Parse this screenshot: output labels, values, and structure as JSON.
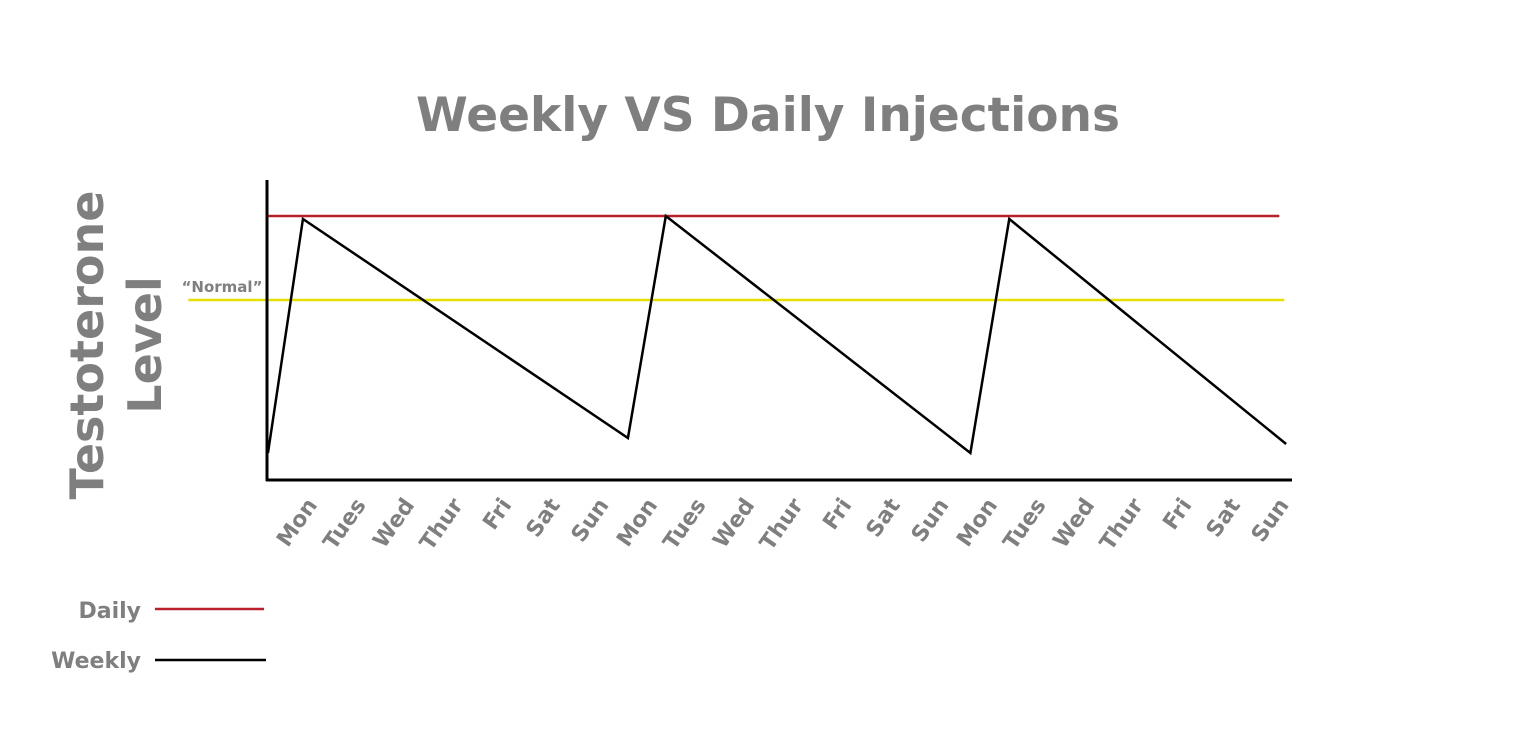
{
  "chart_data": {
    "type": "line",
    "title": "Weekly VS Daily Injections",
    "ylabel": [
      "Testoterone",
      "Level"
    ],
    "xlabel": "",
    "x_tick_labels": [
      "Mon",
      "Tues",
      "Wed",
      "Thur",
      "Fri",
      "Sat",
      "Sun",
      "Mon",
      "Tues",
      "Wed",
      "Thur",
      "Fri",
      "Sat",
      "Sun",
      "Mon",
      "Tues",
      "Wed",
      "Thur",
      "Fri",
      "Sat",
      "Sun"
    ],
    "xlim": [
      -0.68,
      20.4
    ],
    "ylim": [
      0,
      100
    ],
    "grid": false,
    "legend_placement": "bottom-left",
    "reference_line": {
      "label": "“Normal”",
      "y": 60,
      "x": [
        -2.3,
        20.26
      ],
      "color": "#e6e000"
    },
    "series": [
      {
        "name": "Daily",
        "color": "#b8202a",
        "x": [
          -0.68,
          20.16
        ],
        "y": [
          88,
          88
        ]
      },
      {
        "name": "Weekly",
        "color": "#000000",
        "x": [
          -0.66,
          0.06,
          6.75,
          7.53,
          13.8,
          14.6,
          20.3
        ],
        "y": [
          9,
          87,
          14,
          88,
          9,
          87,
          12
        ]
      }
    ]
  }
}
